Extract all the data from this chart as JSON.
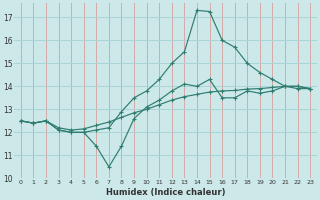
{
  "xlabel": "Humidex (Indice chaleur)",
  "bg_color": "#cce8e8",
  "grid_color": "#aad4d4",
  "line_color": "#2e7d6e",
  "xlim": [
    -0.5,
    23.5
  ],
  "ylim": [
    10,
    17.6
  ],
  "yticks": [
    10,
    11,
    12,
    13,
    14,
    15,
    16,
    17
  ],
  "xticks": [
    0,
    1,
    2,
    3,
    4,
    5,
    6,
    7,
    8,
    9,
    10,
    11,
    12,
    13,
    14,
    15,
    16,
    17,
    18,
    19,
    20,
    21,
    22,
    23
  ],
  "line1_x": [
    0,
    1,
    2,
    3,
    4,
    5,
    6,
    7,
    8,
    9,
    10,
    11,
    12,
    13,
    14,
    15,
    16,
    17,
    18,
    19,
    20,
    21,
    22,
    23
  ],
  "line1_y": [
    12.5,
    12.4,
    12.5,
    12.1,
    12.0,
    12.0,
    11.4,
    10.5,
    11.4,
    12.6,
    13.1,
    13.4,
    13.8,
    14.1,
    14.0,
    14.3,
    13.5,
    13.5,
    13.8,
    13.7,
    13.8,
    14.0,
    14.0,
    13.9
  ],
  "line2_x": [
    0,
    1,
    2,
    3,
    4,
    5,
    6,
    7,
    8,
    9,
    10,
    11,
    12,
    13,
    14,
    15,
    16,
    17,
    18,
    19,
    20,
    21,
    22,
    23
  ],
  "line2_y": [
    12.5,
    12.4,
    12.5,
    12.1,
    12.0,
    12.0,
    12.1,
    12.2,
    12.9,
    13.5,
    13.8,
    14.3,
    15.0,
    15.5,
    17.3,
    17.25,
    16.0,
    15.7,
    15.0,
    14.6,
    14.3,
    14.0,
    13.9,
    13.9
  ],
  "line3_x": [
    0,
    1,
    2,
    3,
    4,
    5,
    6,
    7,
    8,
    9,
    10,
    11,
    12,
    13,
    14,
    15,
    16,
    17,
    18,
    19,
    20,
    21,
    22,
    23
  ],
  "line3_y": [
    12.5,
    12.4,
    12.5,
    12.2,
    12.1,
    12.15,
    12.3,
    12.45,
    12.65,
    12.85,
    13.0,
    13.2,
    13.4,
    13.55,
    13.65,
    13.75,
    13.8,
    13.82,
    13.88,
    13.9,
    13.95,
    14.0,
    14.0,
    13.9
  ]
}
